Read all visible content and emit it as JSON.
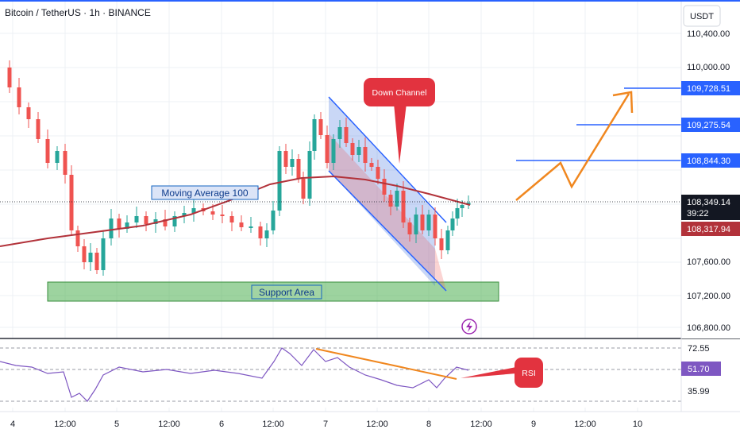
{
  "header": {
    "title": "Bitcoin / TetherUS · 1h · BINANCE",
    "currency": "USDT"
  },
  "colors": {
    "up": "#26a69a",
    "down": "#ef5350",
    "ma": "#b2323a",
    "channel": "#5b8def",
    "support": "#4caf50",
    "arrow": "#f0871f",
    "level": "#2962ff",
    "rsi": "#7e57c2"
  },
  "chart_data": {
    "type": "candlestick",
    "symbol": "Bitcoin / TetherUS",
    "interval": "1h",
    "exchange": "BINANCE",
    "y_ticks": [
      "110,400.00",
      "110,000.00",
      "107,600.00",
      "107,200.00",
      "106,800.00"
    ],
    "x_ticks": [
      "4",
      "12:00",
      "5",
      "12:00",
      "6",
      "12:00",
      "7",
      "12:00",
      "8",
      "12:00",
      "9",
      "12:00",
      "10"
    ],
    "annotations": {
      "moving_average": "Moving Average 100",
      "support": "Support Area",
      "channel": "Down Channel",
      "rsi": "RSI"
    },
    "levels": [
      {
        "price": 109728.51,
        "label": "109,728.51"
      },
      {
        "price": 109275.54,
        "label": "109,275.54"
      },
      {
        "price": 108844.3,
        "label": "108,844.30"
      }
    ],
    "current_price": {
      "label": "108,349.14",
      "countdown": "39:22"
    },
    "ma_value": {
      "label": "108,317.94"
    },
    "rsi": {
      "levels": [
        {
          "label": "72.55"
        },
        {
          "label": "35.99"
        }
      ],
      "value": {
        "label": "51.70"
      }
    }
  }
}
